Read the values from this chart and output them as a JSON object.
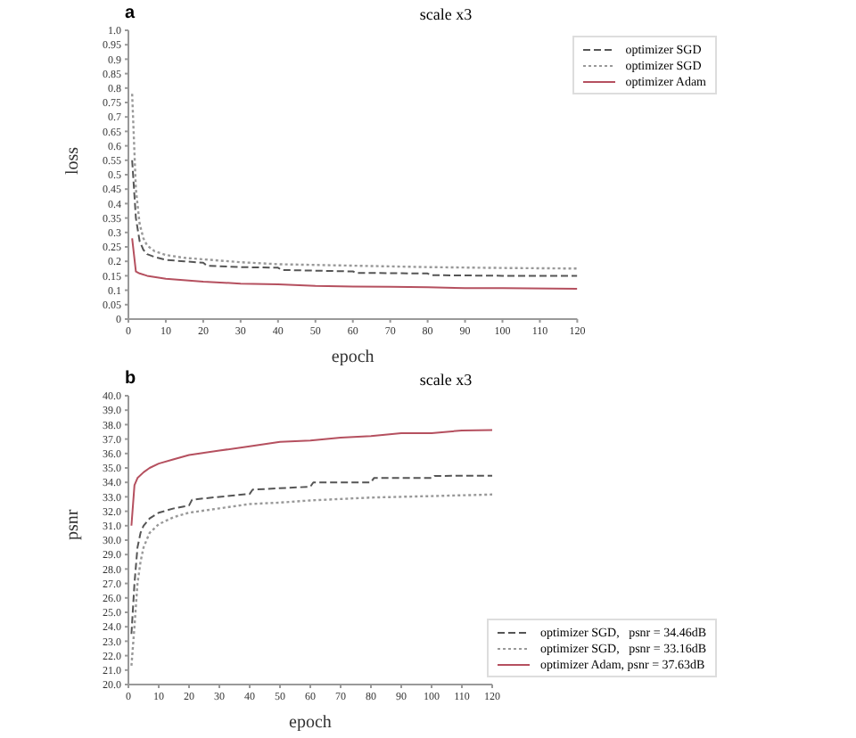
{
  "chart_data": [
    {
      "type": "line",
      "title": "scale x3",
      "annotations": [
        "a"
      ],
      "xlabel": "epoch",
      "ylabel": "loss",
      "xlim": [
        0,
        120
      ],
      "xticks": [
        0,
        10,
        20,
        30,
        40,
        50,
        60,
        70,
        80,
        90,
        100,
        110,
        120
      ],
      "ylim": [
        0,
        1
      ],
      "yticks": [
        0,
        0.05,
        0.1,
        0.15,
        0.2,
        0.25,
        0.3,
        0.35,
        0.4,
        0.45,
        0.5,
        0.55,
        0.6,
        0.65,
        0.7,
        0.75,
        0.8,
        0.85,
        0.9,
        0.95,
        {
          "value": 1,
          "label": "1.0"
        }
      ],
      "grid": false,
      "legend": "top right",
      "marker": "none",
      "series": [
        {
          "name": "optimizer SGD",
          "color": "#555555",
          "line_style": "dashed",
          "x": [
            1,
            2,
            3,
            4,
            5,
            7,
            10,
            15,
            20,
            21,
            30,
            40,
            41,
            60,
            61,
            80,
            81,
            100,
            120
          ],
          "values": [
            0.55,
            0.35,
            0.27,
            0.24,
            0.225,
            0.215,
            0.205,
            0.2,
            0.195,
            0.185,
            0.18,
            0.178,
            0.17,
            0.165,
            0.16,
            0.158,
            0.152,
            0.15,
            0.15
          ]
        },
        {
          "name": "optimizer SGD",
          "color": "#999999",
          "line_style": "dotted",
          "x": [
            1,
            2,
            3,
            4,
            5,
            7,
            10,
            15,
            20,
            30,
            40,
            60,
            80,
            100,
            120
          ],
          "values": [
            0.78,
            0.45,
            0.33,
            0.28,
            0.255,
            0.235,
            0.222,
            0.212,
            0.207,
            0.197,
            0.19,
            0.185,
            0.18,
            0.177,
            0.175
          ]
        },
        {
          "name": "optimizer Adam",
          "color": "#b5505f",
          "line_style": "solid",
          "x": [
            1,
            2,
            3,
            5,
            10,
            20,
            30,
            40,
            50,
            60,
            70,
            80,
            90,
            100,
            120
          ],
          "values": [
            0.28,
            0.165,
            0.158,
            0.15,
            0.14,
            0.13,
            0.123,
            0.12,
            0.115,
            0.113,
            0.112,
            0.11,
            0.107,
            0.107,
            0.105
          ]
        }
      ]
    },
    {
      "type": "line",
      "title": "scale x3",
      "annotations": [
        "b"
      ],
      "xlabel": "epoch",
      "ylabel": "psnr",
      "xlim": [
        0,
        120
      ],
      "xticks": [
        0,
        10,
        20,
        30,
        40,
        50,
        60,
        70,
        80,
        90,
        100,
        110,
        120
      ],
      "ylim": [
        20,
        40
      ],
      "yticks": [
        {
          "value": 20,
          "label": "20.0"
        },
        {
          "value": 21,
          "label": "21.0"
        },
        {
          "value": 22,
          "label": "22.0"
        },
        {
          "value": 23,
          "label": "23.0"
        },
        {
          "value": 24,
          "label": "24.0"
        },
        {
          "value": 25,
          "label": "25.0"
        },
        {
          "value": 26,
          "label": "26.0"
        },
        {
          "value": 27,
          "label": "27.0"
        },
        {
          "value": 28,
          "label": "28.0"
        },
        {
          "value": 29,
          "label": "29.0"
        },
        {
          "value": 30,
          "label": "30.0"
        },
        {
          "value": 31,
          "label": "31.0"
        },
        {
          "value": 32,
          "label": "32.0"
        },
        {
          "value": 33,
          "label": "33.0"
        },
        {
          "value": 34,
          "label": "34.0"
        },
        {
          "value": 35,
          "label": "35.0"
        },
        {
          "value": 36,
          "label": "36.0"
        },
        {
          "value": 37,
          "label": "37.0"
        },
        {
          "value": 38,
          "label": "38.0"
        },
        {
          "value": 39,
          "label": "39.0"
        },
        {
          "value": 40,
          "label": "40.0"
        }
      ],
      "grid": false,
      "legend": "bottom right",
      "marker": "none",
      "series": [
        {
          "name": "optimizer SGD,   psnr = 34.46dB",
          "color": "#555555",
          "line_style": "dashed",
          "x": [
            1,
            2,
            3,
            4,
            5,
            7,
            10,
            15,
            20,
            21,
            30,
            40,
            41,
            60,
            61,
            80,
            81,
            100,
            101,
            120
          ],
          "values": [
            23.5,
            27,
            29.5,
            30.5,
            31,
            31.5,
            31.9,
            32.2,
            32.4,
            32.8,
            33,
            33.2,
            33.5,
            33.7,
            34,
            34,
            34.3,
            34.3,
            34.45,
            34.46
          ]
        },
        {
          "name": "optimizer SGD,   psnr = 33.16dB",
          "color": "#999999",
          "line_style": "dotted",
          "x": [
            1,
            2,
            3,
            4,
            5,
            7,
            10,
            15,
            20,
            30,
            40,
            50,
            60,
            80,
            100,
            120
          ],
          "values": [
            21.3,
            24,
            27,
            28.5,
            29.5,
            30.5,
            31.1,
            31.6,
            31.9,
            32.2,
            32.5,
            32.6,
            32.75,
            32.95,
            33.05,
            33.16
          ]
        },
        {
          "name": "optimizer Adam, psnr = 37.63dB",
          "color": "#b5505f",
          "line_style": "solid",
          "x": [
            1,
            2,
            3,
            5,
            7,
            10,
            15,
            20,
            30,
            40,
            50,
            60,
            70,
            80,
            90,
            100,
            110,
            120
          ],
          "values": [
            31,
            33.8,
            34.3,
            34.7,
            35,
            35.3,
            35.6,
            35.9,
            36.2,
            36.5,
            36.8,
            36.9,
            37.1,
            37.2,
            37.4,
            37.4,
            37.6,
            37.63
          ]
        }
      ]
    }
  ]
}
